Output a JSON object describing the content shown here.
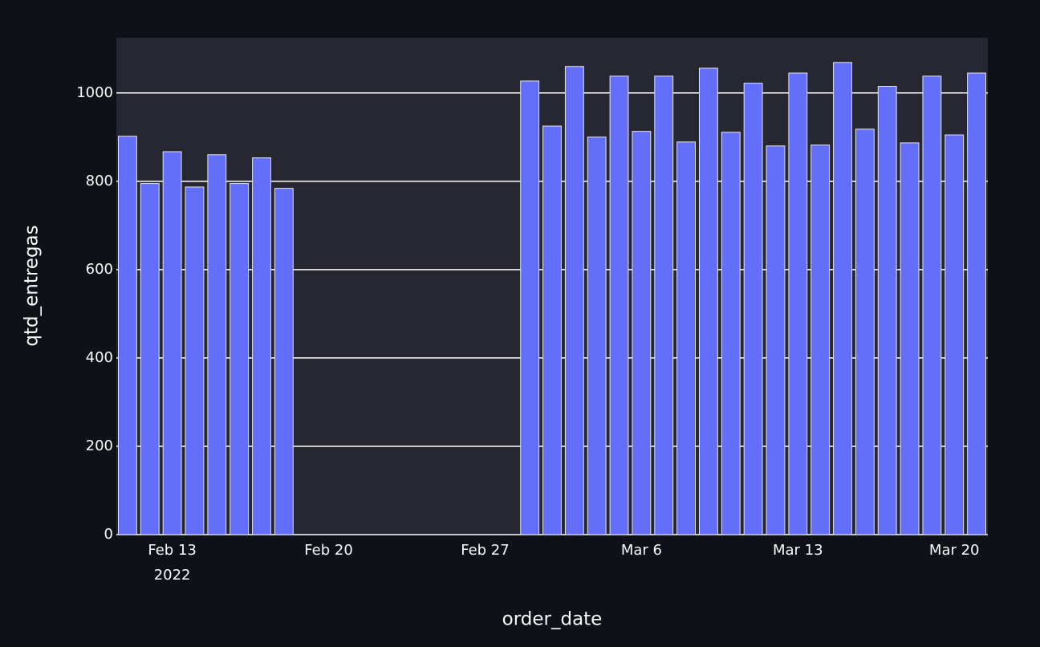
{
  "chart_data": {
    "type": "bar",
    "xlabel": "order_date",
    "ylabel": "qtd_entregas",
    "x": [
      "2022-02-11",
      "2022-02-12",
      "2022-02-13",
      "2022-02-14",
      "2022-02-15",
      "2022-02-16",
      "2022-02-17",
      "2022-02-18",
      "2022-02-19",
      "2022-02-20",
      "2022-02-21",
      "2022-02-22",
      "2022-02-23",
      "2022-02-24",
      "2022-02-25",
      "2022-02-26",
      "2022-02-27",
      "2022-02-28",
      "2022-03-01",
      "2022-03-02",
      "2022-03-03",
      "2022-03-04",
      "2022-03-05",
      "2022-03-06",
      "2022-03-07",
      "2022-03-08",
      "2022-03-09",
      "2022-03-10",
      "2022-03-11",
      "2022-03-12",
      "2022-03-13",
      "2022-03-14",
      "2022-03-15",
      "2022-03-16",
      "2022-03-17",
      "2022-03-18",
      "2022-03-19",
      "2022-03-20",
      "2022-03-21"
    ],
    "values": [
      902,
      795,
      867,
      787,
      860,
      795,
      853,
      784,
      0,
      0,
      0,
      0,
      0,
      0,
      0,
      0,
      0,
      0,
      1027,
      925,
      1060,
      900,
      1038,
      913,
      1038,
      889,
      1056,
      911,
      1022,
      880,
      1045,
      882,
      1069,
      918,
      1015,
      887,
      1038,
      905,
      1045
    ],
    "color": "#636efa",
    "xlim": [
      "2022-02-10 12:00",
      "2022-03-21 12:00"
    ],
    "xticks": [
      {
        "value": "2022-02-13",
        "label": "Feb 13"
      },
      {
        "value": "2022-02-20",
        "label": "Feb 20"
      },
      {
        "value": "2022-02-27",
        "label": "Feb 27"
      },
      {
        "value": "2022-03-06",
        "label": "Mar 6"
      },
      {
        "value": "2022-03-13",
        "label": "Mar 13"
      },
      {
        "value": "2022-03-20",
        "label": "Mar 20"
      }
    ],
    "x_year_label": "2022",
    "ylim": [
      0,
      1125
    ],
    "yticks": [
      0,
      200,
      400,
      600,
      800,
      1000
    ],
    "grid": true
  }
}
